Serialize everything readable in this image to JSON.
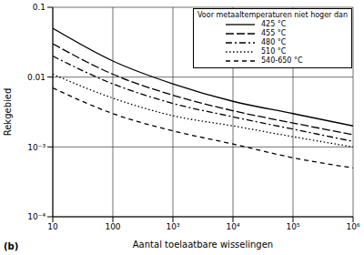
{
  "chart_data": {
    "type": "line",
    "x_label": "Aantal toelaatbare wisselingen",
    "y_label": "Rekgebied",
    "annotations": [
      "Voor metaaltemperaturen niet hoger dan",
      "(b)"
    ],
    "log": true,
    "grid": true,
    "legend": "upper right",
    "x": [
      10,
      100,
      1000,
      10000,
      100000,
      1000000
    ],
    "xlim": [
      10,
      1000000
    ],
    "xticks": [
      10,
      100,
      {
        "value": 1000,
        "label": "10³"
      },
      {
        "value": 10000,
        "label": "10⁴"
      },
      {
        "value": 100000,
        "label": "10⁵"
      },
      {
        "value": 1000000,
        "label": "10⁶"
      }
    ],
    "ylim": [
      0.0001,
      0.1
    ],
    "yticks": [
      {
        "value": 0.0001,
        "label": "10⁻⁴"
      },
      {
        "value": 0.001,
        "label": "10⁻³"
      },
      0.01,
      0.1
    ],
    "series": [
      {
        "name": "425 °C",
        "color": "#000000",
        "line_style": "solid",
        "values": [
          0.05,
          0.017,
          0.008,
          0.0045,
          0.003,
          0.002
        ]
      },
      {
        "name": "455 °C",
        "color": "#000000",
        "line_style": "long_dash",
        "values": [
          0.03,
          0.011,
          0.0055,
          0.0033,
          0.0022,
          0.0015
        ]
      },
      {
        "name": "480 °C",
        "color": "#000000",
        "line_style": "dash_dot",
        "values": [
          0.02,
          0.008,
          0.0042,
          0.0027,
          0.0018,
          0.0012
        ]
      },
      {
        "name": "510 °C",
        "color": "#000000",
        "line_style": "dotted",
        "values": [
          0.011,
          0.005,
          0.0028,
          0.002,
          0.0014,
          0.001
        ]
      },
      {
        "name": "540-650 °C",
        "color": "#000000",
        "line_style": "dashed",
        "values": [
          0.007,
          0.003,
          0.0017,
          0.0011,
          0.0007,
          0.0005
        ]
      }
    ]
  }
}
